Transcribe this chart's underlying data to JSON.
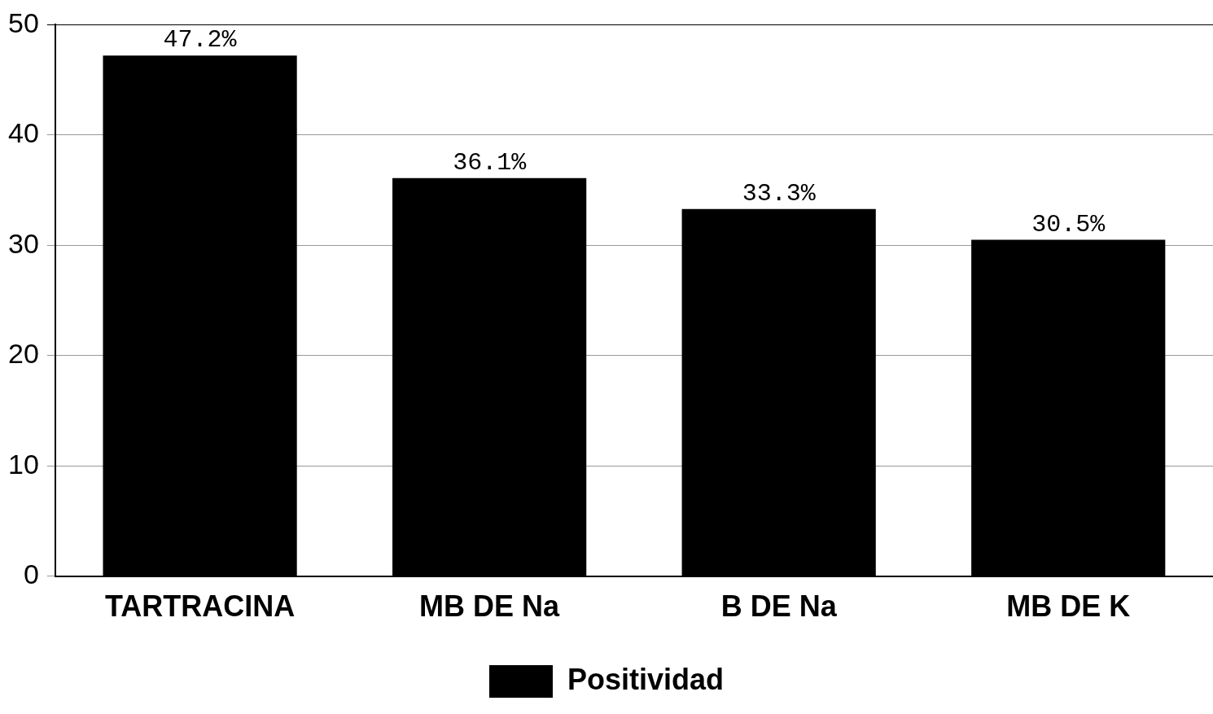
{
  "chart_data": {
    "type": "bar",
    "categories": [
      "TARTRACINA",
      "MB DE Na",
      "B DE Na",
      "MB DE K"
    ],
    "series": [
      {
        "name": "Positividad",
        "color": "#000000",
        "values": [
          47.2,
          36.1,
          33.3,
          30.5
        ],
        "value_labels": [
          "47.2%",
          "36.1%",
          "33.3%",
          "30.5%"
        ]
      }
    ],
    "ylim": [
      0,
      50
    ],
    "yticks": [
      0,
      10,
      20,
      30,
      40,
      50
    ],
    "grid": "y",
    "legend": "bottom"
  }
}
